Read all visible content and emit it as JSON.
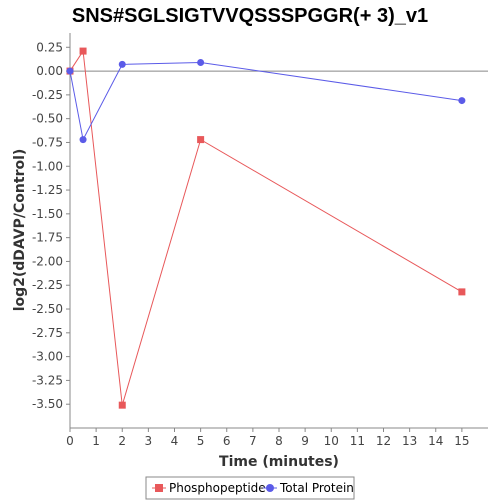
{
  "chart_data": {
    "type": "line",
    "title": "SNS#SGLSIGTVVQSSSPGGR(+ 3)_v1",
    "xlabel": "Time (minutes)",
    "ylabel": "log2(dDAVP/Control)",
    "xlim": [
      0,
      16
    ],
    "ylim": [
      -3.75,
      0.4
    ],
    "xticks": [
      0,
      1,
      2,
      3,
      4,
      5,
      6,
      7,
      8,
      9,
      10,
      11,
      12,
      13,
      14,
      15
    ],
    "yticks": [
      0.25,
      0.0,
      -0.25,
      -0.5,
      -0.75,
      -1.0,
      -1.25,
      -1.5,
      -1.75,
      -2.0,
      -2.25,
      -2.5,
      -2.75,
      -3.0,
      -3.25,
      -3.5
    ],
    "ytick_labels": [
      "0.25",
      "0.00",
      "-0.25",
      "-0.50",
      "-0.75",
      "-1.00",
      "-1.25",
      "-1.50",
      "-1.75",
      "-2.00",
      "-2.25",
      "-2.50",
      "-2.75",
      "-3.00",
      "-3.25",
      "-3.50"
    ],
    "zero_line": true,
    "grid": false,
    "legend_position": "bottom",
    "series": [
      {
        "name": "Phosphopeptide",
        "color": "#e8585a",
        "marker": "square",
        "x": [
          0,
          0.5,
          2,
          5,
          15
        ],
        "y": [
          0.0,
          0.21,
          -3.51,
          -0.72,
          -2.32
        ]
      },
      {
        "name": "Total Protein",
        "color": "#5b5be8",
        "marker": "circle",
        "x": [
          0,
          0.5,
          2,
          5,
          15
        ],
        "y": [
          0.0,
          -0.72,
          0.07,
          0.09,
          -0.31
        ]
      }
    ]
  }
}
